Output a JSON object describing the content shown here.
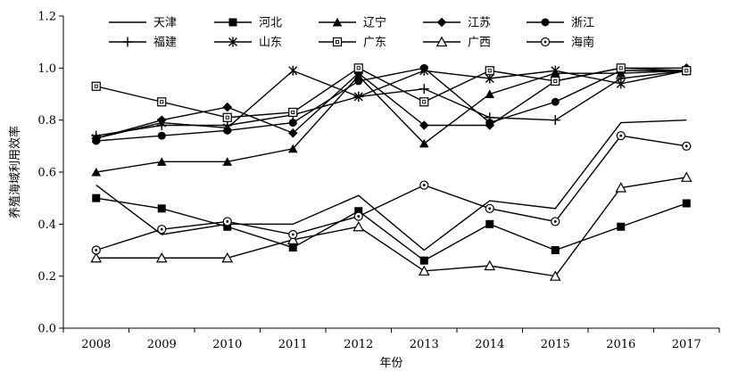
{
  "chart_data": {
    "type": "line",
    "xlabel": "年份",
    "ylabel": "养殖海域利用效率",
    "ylim": [
      0,
      1.2
    ],
    "yticks": [
      "0.0",
      "0.2",
      "0.4",
      "0.6",
      "0.8",
      "1.0",
      "1.2"
    ],
    "categories": [
      "2008",
      "2009",
      "2010",
      "2011",
      "2012",
      "2013",
      "2014",
      "2015",
      "2016",
      "2017"
    ],
    "grid": false,
    "legend_position": "top",
    "line_color": "#000000",
    "series": [
      {
        "name": "天津",
        "marker": "none",
        "values": [
          0.55,
          0.36,
          0.4,
          0.4,
          0.51,
          0.3,
          0.49,
          0.46,
          0.79,
          0.8
        ]
      },
      {
        "name": "河北",
        "marker": "square-filled",
        "values": [
          0.5,
          0.46,
          0.39,
          0.31,
          0.45,
          0.26,
          0.4,
          0.3,
          0.39,
          0.48
        ]
      },
      {
        "name": "辽宁",
        "marker": "triangle-filled",
        "values": [
          0.6,
          0.64,
          0.64,
          0.69,
          0.97,
          0.71,
          0.9,
          0.98,
          0.98,
          0.99
        ]
      },
      {
        "name": "江苏",
        "marker": "diamond-filled",
        "values": [
          0.73,
          0.8,
          0.85,
          0.75,
          0.98,
          0.78,
          0.78,
          0.95,
          1.0,
          1.0
        ]
      },
      {
        "name": "浙江",
        "marker": "circle-filled",
        "values": [
          0.72,
          0.74,
          0.76,
          0.79,
          0.95,
          1.0,
          0.79,
          0.87,
          0.99,
          0.99
        ]
      },
      {
        "name": "福建",
        "marker": "plus",
        "values": [
          0.74,
          0.78,
          0.78,
          0.82,
          0.89,
          0.92,
          0.81,
          0.8,
          0.96,
          0.99
        ]
      },
      {
        "name": "山东",
        "marker": "star",
        "values": [
          0.73,
          0.79,
          0.77,
          0.99,
          0.89,
          0.99,
          0.96,
          0.99,
          0.94,
          0.99
        ]
      },
      {
        "name": "广东",
        "marker": "square-open",
        "values": [
          0.93,
          0.87,
          0.81,
          0.83,
          1.0,
          0.87,
          0.99,
          0.95,
          1.0,
          0.99
        ]
      },
      {
        "name": "广西",
        "marker": "triangle-open",
        "values": [
          0.27,
          0.27,
          0.27,
          0.34,
          0.39,
          0.22,
          0.24,
          0.2,
          0.54,
          0.58
        ]
      },
      {
        "name": "海南",
        "marker": "circle-open",
        "values": [
          0.3,
          0.38,
          0.41,
          0.36,
          0.43,
          0.55,
          0.46,
          0.41,
          0.74,
          0.7
        ]
      }
    ]
  }
}
